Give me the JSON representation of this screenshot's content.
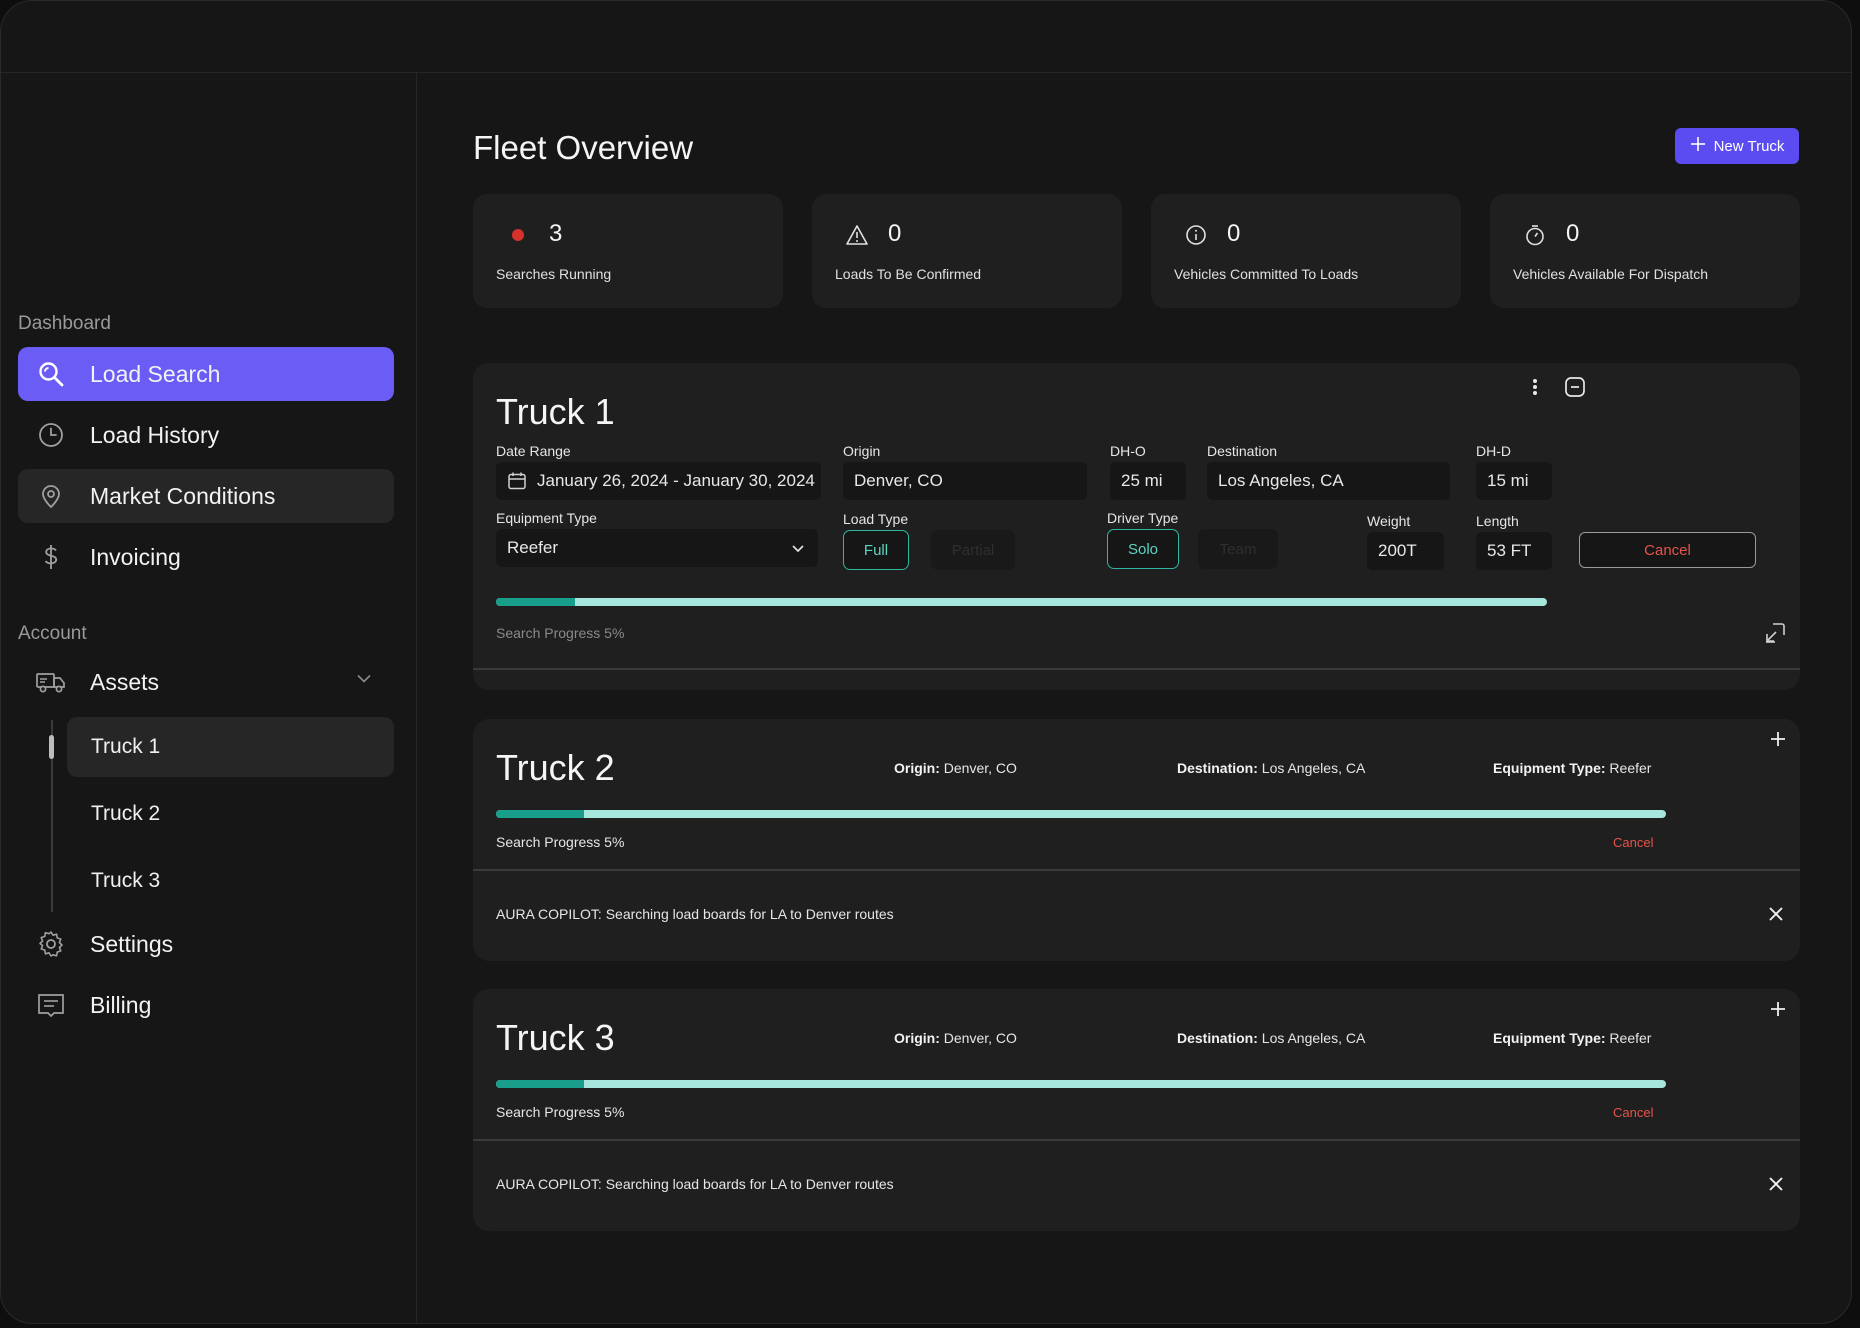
{
  "sidebar": {
    "dashboard_label": "Dashboard",
    "nav": [
      {
        "label": "Load Search",
        "icon": "search-icon"
      },
      {
        "label": "Load History",
        "icon": "clock-icon"
      },
      {
        "label": "Market Conditions",
        "icon": "map-pin-icon"
      },
      {
        "label": "Invoicing",
        "icon": "dollar-icon"
      }
    ],
    "account_label": "Account",
    "assets": {
      "label": "Assets",
      "icon": "truck-icon",
      "children": [
        "Truck 1",
        "Truck 2",
        "Truck 3"
      ]
    },
    "settings_label": "Settings",
    "billing_label": "Billing"
  },
  "main": {
    "title": "Fleet Overview",
    "new_truck_label": "New Truck",
    "stats": [
      {
        "value": "3",
        "label": "Searches Running",
        "icon": "red-dot-icon"
      },
      {
        "value": "0",
        "label": "Loads To Be Confirmed",
        "icon": "warning-icon"
      },
      {
        "value": "0",
        "label": "Vehicles Committed To Loads",
        "icon": "info-icon"
      },
      {
        "value": "0",
        "label": "Vehicles Available For Dispatch",
        "icon": "stopwatch-icon"
      }
    ]
  },
  "truck1": {
    "title": "Truck 1",
    "date_range_label": "Date Range",
    "date_range_value": "January 26, 2024 - January 30, 2024",
    "origin_label": "Origin",
    "origin_value": "Denver, CO",
    "dho_label": "DH-O",
    "dho_value": "25 mi",
    "destination_label": "Destination",
    "destination_value": "Los Angeles, CA",
    "dhd_label": "DH-D",
    "dhd_value": "15 mi",
    "equipment_label": "Equipment Type",
    "equipment_value": "Reefer",
    "load_type_label": "Load Type",
    "load_full": "Full",
    "load_partial": "Partial",
    "driver_type_label": "Driver Type",
    "driver_solo": "Solo",
    "driver_team": "Team",
    "weight_label": "Weight",
    "weight_value": "200T",
    "length_label": "Length",
    "length_value": "53 FT",
    "cancel_label": "Cancel",
    "progress_label": "Search Progress 5%",
    "progress": 0.05
  },
  "truck2": {
    "title": "Truck 2",
    "origin_label": "Origin:",
    "origin_value": "Denver, CO",
    "destination_label": "Destination:",
    "destination_value": "Los Angeles, CA",
    "equipment_label": "Equipment Type:",
    "equipment_value": "Reefer",
    "progress_label": "Search Progress 5%",
    "progress": 0.05,
    "cancel_label": "Cancel",
    "copilot_message": "AURA COPILOT: Searching load boards for LA to Denver routes"
  },
  "truck3": {
    "title": "Truck 3",
    "origin_label": "Origin:",
    "origin_value": "Denver, CO",
    "destination_label": "Destination:",
    "destination_value": "Los Angeles, CA",
    "equipment_label": "Equipment Type:",
    "equipment_value": "Reefer",
    "progress_label": "Search Progress 5%",
    "progress": 0.05,
    "cancel_label": "Cancel",
    "copilot_message": "AURA COPILOT: Searching load boards for LA to Denver routes"
  },
  "colors": {
    "accent": "#6b5cf6",
    "progress_track": "#a6e6dc",
    "progress_fill": "#1a9e8c",
    "danger": "#e5544b",
    "teal": "#2fb5a0"
  }
}
